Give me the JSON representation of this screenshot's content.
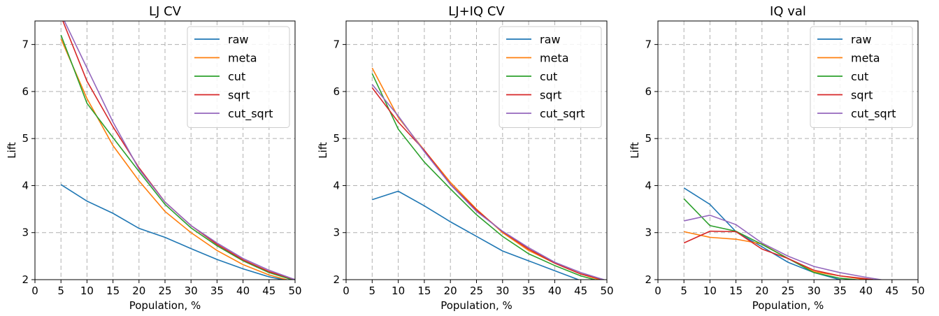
{
  "chart_data": [
    {
      "type": "line",
      "title": "LJ CV",
      "xlabel": "Population, %",
      "ylabel": "Lift",
      "xlim": [
        0,
        50
      ],
      "ylim": [
        2,
        7.5
      ],
      "xticks": [
        0,
        5,
        10,
        15,
        20,
        25,
        30,
        35,
        40,
        45,
        50
      ],
      "yticks": [
        2,
        3,
        4,
        5,
        6,
        7
      ],
      "grid": true,
      "legend_position": "top-right",
      "x": [
        5,
        10,
        15,
        20,
        25,
        30,
        35,
        40,
        45,
        50
      ],
      "series": [
        {
          "name": "raw",
          "color": "#1f77b4",
          "values": [
            4.02,
            3.67,
            3.41,
            3.09,
            2.9,
            2.66,
            2.43,
            2.23,
            2.06,
            1.95
          ]
        },
        {
          "name": "meta",
          "color": "#ff7f0e",
          "values": [
            7.12,
            5.85,
            4.85,
            4.1,
            3.45,
            3.0,
            2.62,
            2.32,
            2.1,
            1.95
          ]
        },
        {
          "name": "cut",
          "color": "#2ca02c",
          "values": [
            7.2,
            5.75,
            5.02,
            4.3,
            3.6,
            3.1,
            2.72,
            2.4,
            2.15,
            1.98
          ]
        },
        {
          "name": "sqrt",
          "color": "#d62728",
          "values": [
            7.6,
            6.22,
            5.25,
            4.38,
            3.65,
            3.15,
            2.75,
            2.42,
            2.17,
            2.0
          ]
        },
        {
          "name": "cut_sqrt",
          "color": "#9467bd",
          "values": [
            7.65,
            6.5,
            5.35,
            4.35,
            3.65,
            3.15,
            2.78,
            2.45,
            2.2,
            2.0
          ]
        }
      ]
    },
    {
      "type": "line",
      "title": "LJ+IQ CV",
      "xlabel": "Population, %",
      "ylabel": "Lift",
      "xlim": [
        0,
        50
      ],
      "ylim": [
        2,
        7.5
      ],
      "xticks": [
        0,
        5,
        10,
        15,
        20,
        25,
        30,
        35,
        40,
        45,
        50
      ],
      "yticks": [
        2,
        3,
        4,
        5,
        6,
        7
      ],
      "grid": true,
      "legend_position": "top-right",
      "x": [
        5,
        10,
        15,
        20,
        25,
        30,
        35,
        40,
        45,
        50
      ],
      "series": [
        {
          "name": "raw",
          "color": "#1f77b4",
          "values": [
            3.7,
            3.88,
            3.57,
            3.23,
            2.92,
            2.61,
            2.4,
            2.19,
            1.98,
            1.85
          ]
        },
        {
          "name": "meta",
          "color": "#ff7f0e",
          "values": [
            6.5,
            5.45,
            4.75,
            4.07,
            3.5,
            3.0,
            2.62,
            2.35,
            2.12,
            1.95
          ]
        },
        {
          "name": "cut",
          "color": "#2ca02c",
          "values": [
            6.38,
            5.2,
            4.5,
            3.93,
            3.38,
            2.92,
            2.55,
            2.3,
            2.08,
            1.93
          ]
        },
        {
          "name": "sqrt",
          "color": "#d62728",
          "values": [
            6.08,
            5.35,
            4.75,
            4.03,
            3.48,
            3.02,
            2.65,
            2.35,
            2.12,
            1.98
          ]
        },
        {
          "name": "cut_sqrt",
          "color": "#9467bd",
          "values": [
            6.15,
            5.48,
            4.72,
            4.02,
            3.45,
            3.03,
            2.68,
            2.37,
            2.15,
            1.98
          ]
        }
      ]
    },
    {
      "type": "line",
      "title": "IQ val",
      "xlabel": "Population, %",
      "ylabel": "Lift",
      "xlim": [
        0,
        50
      ],
      "ylim": [
        2,
        7.5
      ],
      "xticks": [
        0,
        5,
        10,
        15,
        20,
        25,
        30,
        35,
        40,
        45,
        50
      ],
      "yticks": [
        2,
        3,
        4,
        5,
        6,
        7
      ],
      "grid": true,
      "legend_position": "top-right",
      "x": [
        5,
        10,
        15,
        20,
        25,
        30,
        35,
        40,
        45,
        50
      ],
      "series": [
        {
          "name": "raw",
          "color": "#1f77b4",
          "values": [
            3.95,
            3.6,
            3.02,
            2.7,
            2.37,
            2.15,
            2.0,
            1.95,
            1.9,
            1.85
          ]
        },
        {
          "name": "meta",
          "color": "#ff7f0e",
          "values": [
            3.02,
            2.9,
            2.86,
            2.76,
            2.45,
            2.17,
            2.08,
            2.0,
            1.95,
            1.9
          ]
        },
        {
          "name": "cut",
          "color": "#2ca02c",
          "values": [
            3.72,
            3.15,
            3.03,
            2.75,
            2.45,
            2.15,
            2.03,
            1.98,
            1.93,
            1.9
          ]
        },
        {
          "name": "sqrt",
          "color": "#d62728",
          "values": [
            2.78,
            3.03,
            3.02,
            2.65,
            2.45,
            2.2,
            2.08,
            2.02,
            1.95,
            1.9
          ]
        },
        {
          "name": "cut_sqrt",
          "color": "#9467bd",
          "values": [
            3.25,
            3.37,
            3.17,
            2.78,
            2.5,
            2.28,
            2.15,
            2.05,
            1.96,
            1.9
          ]
        }
      ]
    }
  ]
}
